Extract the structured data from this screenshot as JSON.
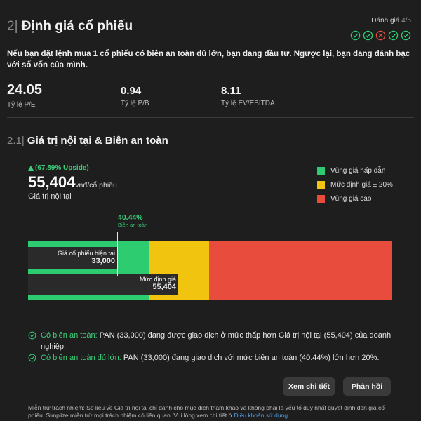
{
  "section1": {
    "number": "2|",
    "title": "Định giá cổ phiếu"
  },
  "rating": {
    "label": "Đánh giá",
    "score": "4/5",
    "items": [
      "pass",
      "pass",
      "fail",
      "pass",
      "pass"
    ]
  },
  "intro": "Nếu bạn đặt lệnh mua 1 cổ phiếu có biên an toàn đủ lớn, bạn đang đầu tư. Ngược lại, bạn đang đánh bạc với số vốn của mình.",
  "metrics": [
    {
      "value": "24.05",
      "label": "Tỷ lệ P/E"
    },
    {
      "value": "0.94",
      "label": "Tỷ lệ P/B"
    },
    {
      "value": "8.11",
      "label": "Tỷ lệ EV/EBITDA"
    }
  ],
  "section2": {
    "number": "2.1|",
    "title": "Giá trị nội tại & Biên an toàn"
  },
  "valuation": {
    "upside": "(67.89% Upside)",
    "intrinsic_value": "55,404",
    "unit": "vnđ/cổ phiếu",
    "intrinsic_label": "Giá trị nội tại",
    "safety_margin": "40.44%",
    "safety_margin_label": "Biên an toàn",
    "current_price_label": "Giá cổ phiếu hiện tại",
    "current_price": "33,000",
    "fair_value_label": "Mức định giá",
    "fair_value": "55,404"
  },
  "legend": [
    {
      "label": "Vùng giá hấp dẫn",
      "color": "#2ecc71"
    },
    {
      "label": "Mức định giá ± 20%",
      "color": "#f1c40f"
    },
    {
      "label": "Vùng giá cao",
      "color": "#e74c3c"
    }
  ],
  "notes": [
    {
      "highlight": "Có biên an toàn:",
      "text": " PAN (33,000) đang được giao dịch ở mức thấp hơn Giá trị nội tại (55,404) của doanh nghiệp."
    },
    {
      "highlight": "Có biên an toàn đủ lớn:",
      "text": " PAN (33,000) đang giao dịch với mức biên an toàn (40.44%) lớn hơn 20%."
    }
  ],
  "buttons": {
    "details": "Xem chi tiết",
    "feedback": "Phản hồi"
  },
  "disclaimer": {
    "text": "Miễn trừ trách nhiệm: Số liệu về Giá trị nội tại chỉ dành cho mục đích tham khảo và không phải là yếu tố duy nhất quyết định đến giá cổ phiếu. Simplize miễn trừ mọi trách nhiệm có liên quan. Vui lòng xem chi tiết ở ",
    "link": "Điều khoản sử dụng"
  }
}
